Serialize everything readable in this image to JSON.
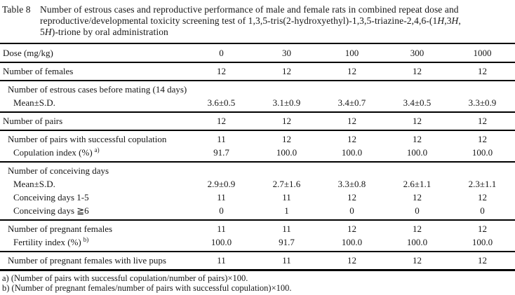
{
  "page": {
    "title_label": "Table 8",
    "title_lines": [
      [
        {
          "t": "Number of estrous cases and reproductive performance of male and female rats in combined repeat dose and",
          "i": false
        }
      ],
      [
        {
          "t": "reproductive/developmental toxicity screening test of 1,3,5-tris(2-hydroxyethyl)-1,3,5-triazine-2,4,6-(1",
          "i": false
        },
        {
          "t": "H",
          "i": true
        },
        {
          "t": ",3",
          "i": false
        },
        {
          "t": "H",
          "i": true
        },
        {
          "t": ",",
          "i": false
        }
      ],
      [
        {
          "t": "5",
          "i": false
        },
        {
          "t": "H",
          "i": true
        },
        {
          "t": ")-trione by oral administration",
          "i": false
        }
      ]
    ]
  },
  "table": {
    "dose_label": "Dose (mg/kg)",
    "doses": [
      "0",
      "30",
      "100",
      "300",
      "1000"
    ],
    "groups": [
      {
        "rows": [
          {
            "label": "Number of females",
            "indent": 0,
            "values": [
              "12",
              "12",
              "12",
              "12",
              "12"
            ]
          }
        ]
      },
      {
        "rows": [
          {
            "label": "Number of estrous cases before mating (14 days)",
            "indent": 1,
            "values": []
          },
          {
            "label": "Mean±S.D.",
            "indent": 2,
            "values": [
              "3.6±0.5",
              "3.1±0.9",
              "3.4±0.7",
              "3.4±0.5",
              "3.3±0.9"
            ]
          }
        ]
      },
      {
        "rows": [
          {
            "label": "Number of pairs",
            "indent": 0,
            "values": [
              "12",
              "12",
              "12",
              "12",
              "12"
            ]
          }
        ]
      },
      {
        "rows": [
          {
            "label": "Number of pairs with successful copulation",
            "indent": 1,
            "values": [
              "11",
              "12",
              "12",
              "12",
              "12"
            ]
          },
          {
            "label": "Copulation index (%)",
            "sup": "a)",
            "indent": 2,
            "values": [
              "91.7",
              "100.0",
              "100.0",
              "100.0",
              "100.0"
            ]
          }
        ]
      },
      {
        "rows": [
          {
            "label": "Number of conceiving days",
            "indent": 1,
            "values": []
          },
          {
            "label": "Mean±S.D.",
            "indent": 2,
            "values": [
              "2.9±0.9",
              "2.7±1.6",
              "3.3±0.8",
              "2.6±1.1",
              "2.3±1.1"
            ]
          },
          {
            "label": "Conceiving days 1-5",
            "indent": 2,
            "values": [
              "11",
              "11",
              "12",
              "12",
              "12"
            ]
          },
          {
            "label": "Conceiving days ≧6",
            "indent": 2,
            "values": [
              "0",
              "1",
              "0",
              "0",
              "0"
            ]
          }
        ]
      },
      {
        "rows": [
          {
            "label": "Number of pregnant females",
            "indent": 1,
            "values": [
              "11",
              "11",
              "12",
              "12",
              "12"
            ]
          },
          {
            "label": "Fertility index (%)",
            "sup": "b)",
            "indent": 2,
            "values": [
              "100.0",
              "91.7",
              "100.0",
              "100.0",
              "100.0"
            ]
          }
        ]
      },
      {
        "rows": [
          {
            "label": "Number of pregnant females with live pups",
            "indent": 1,
            "values": [
              "11",
              "11",
              "12",
              "12",
              "12"
            ]
          }
        ]
      }
    ]
  },
  "footnotes": [
    "a) (Number of pairs with successful copulation/number of pairs)×100.",
    "b) (Number of pregnant females/number of pairs with successful copulation)×100."
  ]
}
